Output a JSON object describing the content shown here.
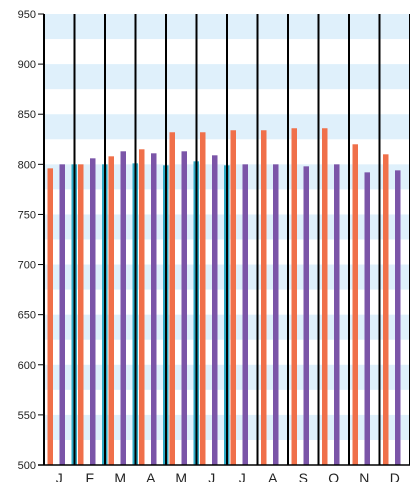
{
  "chart_data": {
    "type": "bar",
    "categories": [
      "J",
      "F",
      "M",
      "A",
      "M",
      "J",
      "J",
      "A",
      "S",
      "O",
      "N",
      "D"
    ],
    "series": [
      {
        "color": "#f0704a",
        "values": [
          796,
          800,
          808,
          815,
          832,
          832,
          834,
          834,
          836,
          836,
          820,
          810
        ]
      },
      {
        "color": "#7b55a8",
        "values": [
          800,
          806,
          813,
          811,
          813,
          809,
          800,
          800,
          798,
          800,
          792,
          794
        ]
      },
      {
        "color": "#2eaac4",
        "values": [
          800,
          800,
          801,
          799,
          803,
          799,
          null,
          null,
          null,
          null,
          null,
          null
        ]
      }
    ],
    "yticks": [
      "500",
      "550",
      "600",
      "650",
      "700",
      "750",
      "800",
      "850",
      "900",
      "950"
    ],
    "ylim": [
      500,
      950
    ],
    "grid": "alternating horizontal bands",
    "band_color": "#dff0fb"
  }
}
